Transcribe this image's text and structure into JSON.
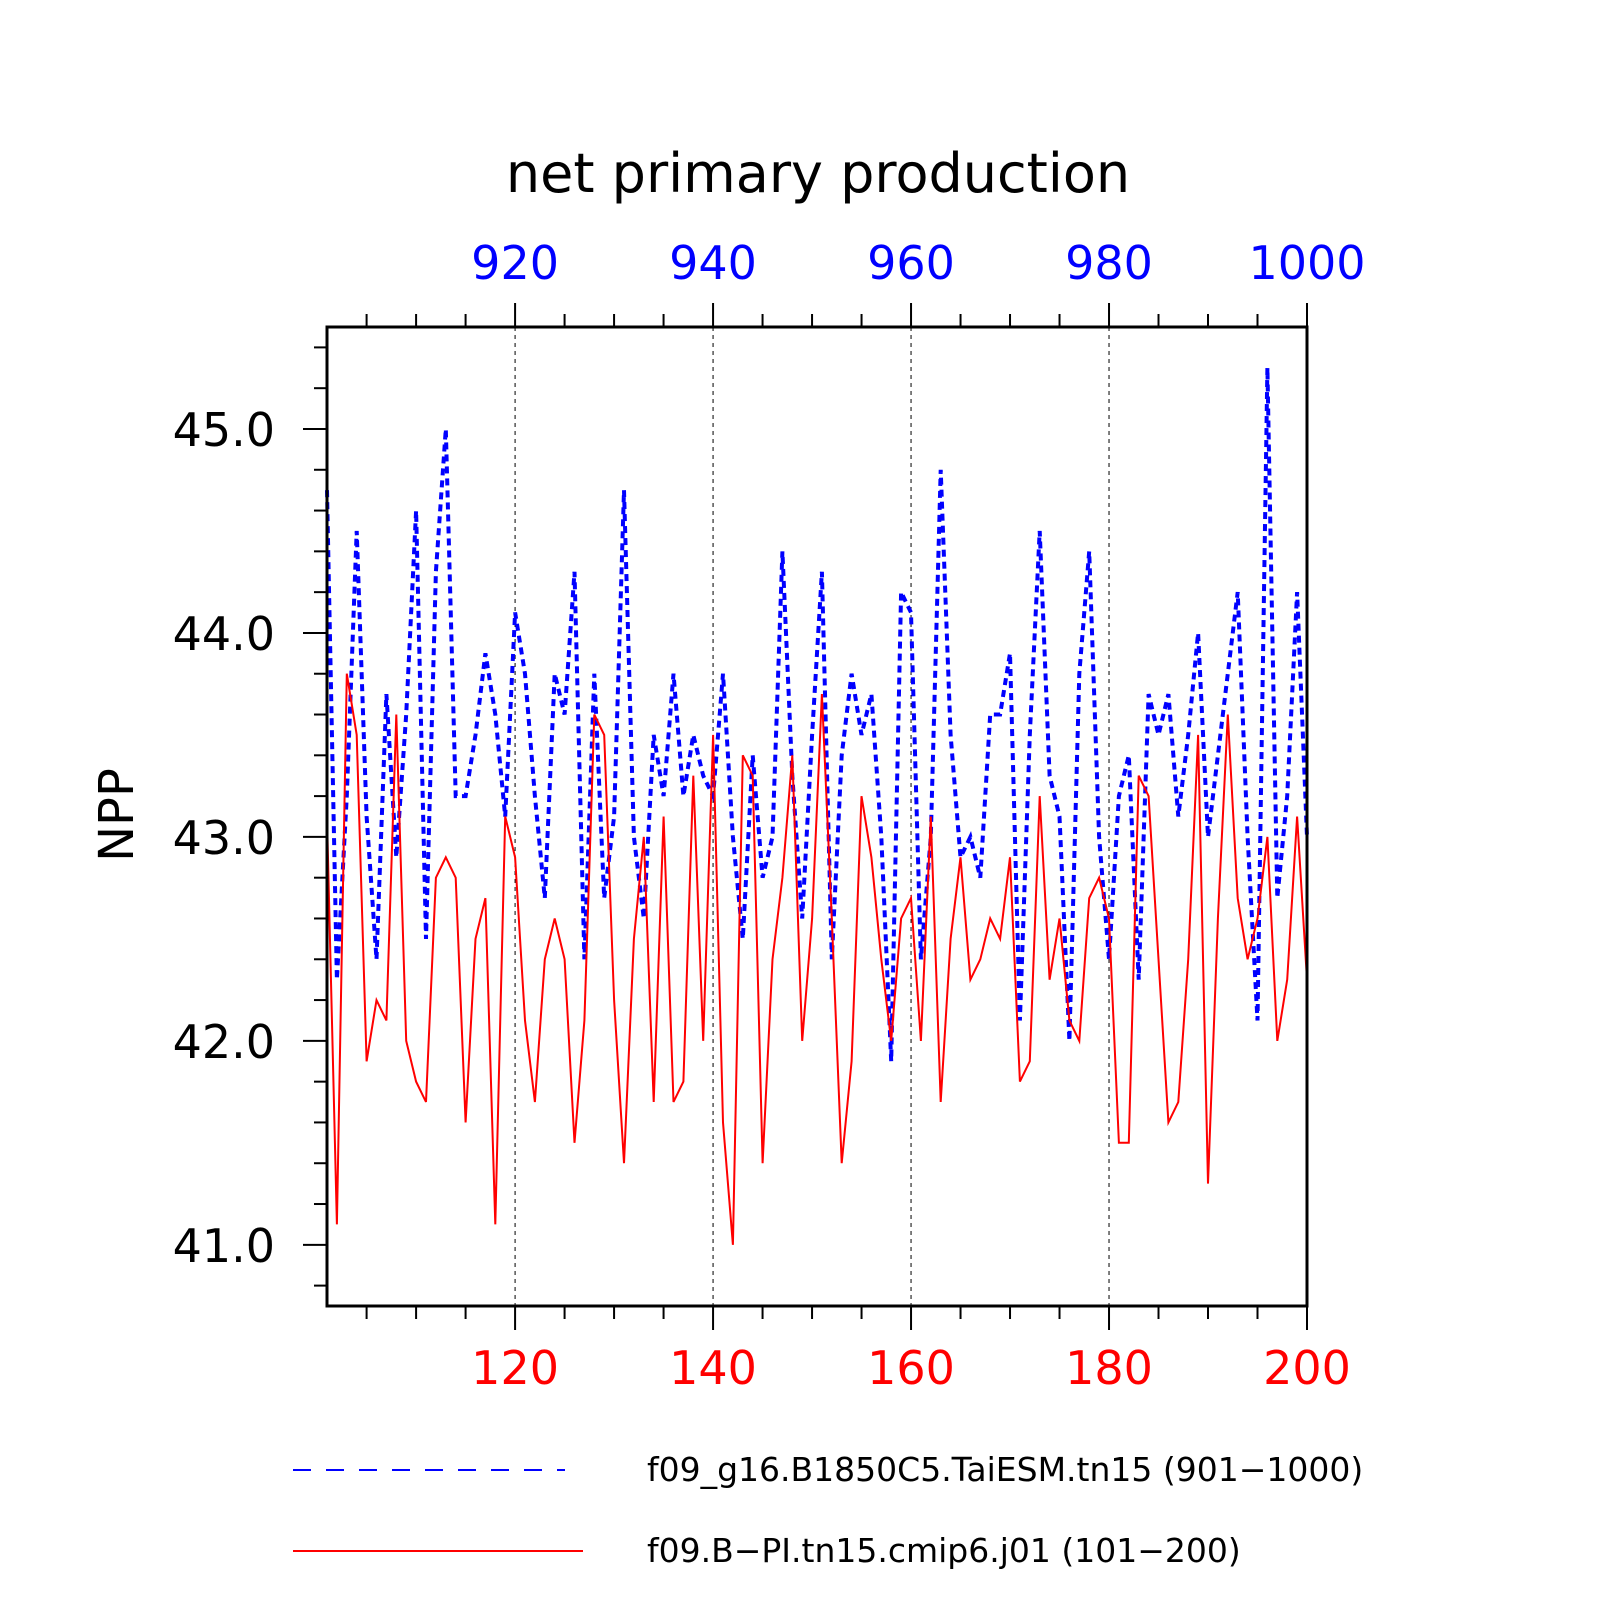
{
  "chart_data": {
    "type": "line",
    "title": "net primary production",
    "ylabel": "NPP",
    "xlabel": "",
    "ylim": [
      40.7,
      45.5
    ],
    "yticks": [
      "41.0",
      "42.0",
      "43.0",
      "44.0",
      "45.0"
    ],
    "ytick_values": [
      41.0,
      42.0,
      43.0,
      44.0,
      45.0
    ],
    "grid": "vertical dashed lines at major x ticks",
    "x_bottom": {
      "range": [
        101,
        200
      ],
      "tick_values": [
        120,
        140,
        160,
        180,
        200
      ],
      "tick_labels": [
        "120",
        "140",
        "160",
        "180",
        "200"
      ],
      "color": "#ff0000"
    },
    "x_top": {
      "range": [
        901,
        1000
      ],
      "tick_values": [
        920,
        940,
        960,
        980,
        1000
      ],
      "tick_labels": [
        "920",
        "940",
        "960",
        "980",
        "1000"
      ],
      "color": "#0000ff"
    },
    "legend_placement": "bottom",
    "series": [
      {
        "name": "f09_g16.B1850C5.TaiESM.tn15 (901−1000)",
        "color": "#0000ff",
        "style": "dashed",
        "axis": "top",
        "x_start": 901,
        "values": [
          44.7,
          42.3,
          43.2,
          44.5,
          43.1,
          42.4,
          43.7,
          42.9,
          43.6,
          44.6,
          42.5,
          44.3,
          45.0,
          43.2,
          43.2,
          43.5,
          43.9,
          43.6,
          43.1,
          44.1,
          43.8,
          43.2,
          42.7,
          43.8,
          43.6,
          44.3,
          42.4,
          43.8,
          42.7,
          43.1,
          44.7,
          43.0,
          42.6,
          43.5,
          43.2,
          43.8,
          43.2,
          43.5,
          43.3,
          43.2,
          43.8,
          43.0,
          42.5,
          43.4,
          42.8,
          43.0,
          44.4,
          43.3,
          42.6,
          43.5,
          44.3,
          42.4,
          43.4,
          43.8,
          43.5,
          43.7,
          43.0,
          41.9,
          44.2,
          44.1,
          42.4,
          43.0,
          44.8,
          43.5,
          42.9,
          43.0,
          42.8,
          43.6,
          43.6,
          43.9,
          42.1,
          43.5,
          44.5,
          43.3,
          43.1,
          42.0,
          43.8,
          44.4,
          43.0,
          42.4,
          43.2,
          43.4,
          42.3,
          43.7,
          43.5,
          43.7,
          43.1,
          43.5,
          44.0,
          43.0,
          43.4,
          43.8,
          44.2,
          43.0,
          42.1,
          45.3,
          42.7,
          43.2,
          44.2,
          43.0
        ]
      },
      {
        "name": "f09.B−PI.tn15.cmip6.j01 (101−200)",
        "color": "#ff0000",
        "style": "solid",
        "axis": "bottom",
        "x_start": 101,
        "values": [
          43.1,
          41.1,
          43.8,
          43.5,
          41.9,
          42.2,
          42.1,
          43.6,
          42.0,
          41.8,
          41.7,
          42.8,
          42.9,
          42.8,
          41.6,
          42.5,
          42.7,
          41.1,
          43.1,
          42.9,
          42.1,
          41.7,
          42.4,
          42.6,
          42.4,
          41.5,
          42.1,
          43.6,
          43.5,
          42.2,
          41.4,
          42.5,
          43.0,
          41.7,
          43.1,
          41.7,
          41.8,
          43.3,
          42.0,
          43.5,
          41.6,
          41.0,
          43.4,
          43.3,
          41.4,
          42.4,
          42.8,
          43.4,
          42.0,
          42.6,
          43.7,
          42.6,
          41.4,
          41.9,
          43.2,
          42.9,
          42.4,
          42.0,
          42.6,
          42.7,
          42.0,
          43.1,
          41.7,
          42.5,
          42.9,
          42.3,
          42.4,
          42.6,
          42.5,
          42.9,
          41.8,
          41.9,
          43.2,
          42.3,
          42.6,
          42.1,
          42.0,
          42.7,
          42.8,
          42.6,
          41.5,
          41.5,
          43.3,
          43.2,
          42.4,
          41.6,
          41.7,
          42.4,
          43.5,
          41.3,
          42.6,
          43.6,
          42.7,
          42.4,
          42.6,
          43.0,
          42.0,
          42.3,
          43.1,
          42.3
        ]
      }
    ]
  }
}
